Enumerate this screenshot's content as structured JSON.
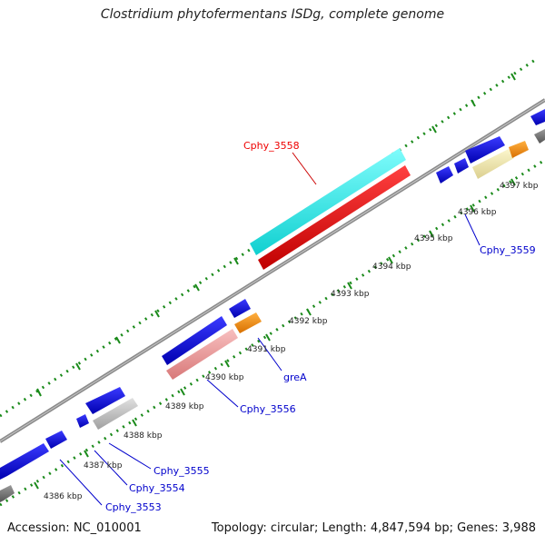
{
  "title": "Clostridium phytofermentans ISDg, complete genome",
  "accession": "Accession: NC_010001",
  "summary": "Topology: circular; Length: 4,847,594 bp; Genes: 3,988",
  "tick_labels": [
    "4386 kbp",
    "4387 kbp",
    "4388 kbp",
    "4389 kbp",
    "4390 kbp",
    "4391 kbp",
    "4392 kbp",
    "4393 kbp",
    "4394 kbp",
    "4395 kbp",
    "4396 kbp",
    "4397 kbp"
  ],
  "gene_labels": [
    {
      "name": "Cphy_3553",
      "color": "#0000cc"
    },
    {
      "name": "Cphy_3554",
      "color": "#0000cc"
    },
    {
      "name": "Cphy_3555",
      "color": "#0000cc"
    },
    {
      "name": "Cphy_3556",
      "color": "#0000cc"
    },
    {
      "name": "greA",
      "color": "#0000cc"
    },
    {
      "name": "Cphy_3558",
      "color": "#ee0000"
    },
    {
      "name": "Cphy_3559",
      "color": "#0000cc"
    }
  ],
  "colors": {
    "backbone": "#8a8a8a",
    "tick_dots": "#1a8a1a",
    "gene_blue": "#1010e0",
    "highlight_cyan": "#22f0f0",
    "highlight_red": "#ee1111",
    "pink": "#f0a0a0",
    "orange": "#f08a00",
    "pale_yellow": "#f5eeaa",
    "light_gray": "#c0c0c0",
    "dark_gray": "#777777"
  }
}
